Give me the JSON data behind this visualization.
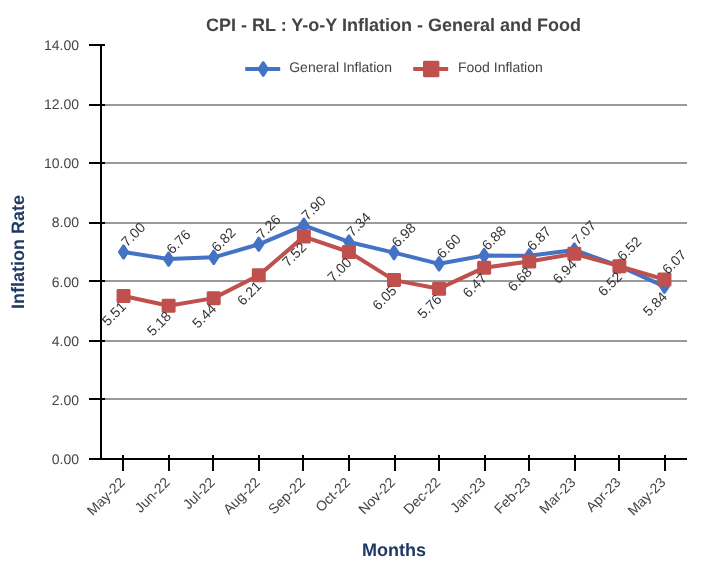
{
  "chart_data": {
    "type": "line",
    "title": "CPI - RL : Y-o-Y Inflation - General and Food",
    "xlabel": "Months",
    "ylabel": "Inflation Rate",
    "categories": [
      "May-22",
      "Jun-22",
      "Jul-22",
      "Aug-22",
      "Sep-22",
      "Oct-22",
      "Nov-22",
      "Dec-22",
      "Jan-23",
      "Feb-23",
      "Mar-23",
      "Apr-23",
      "May-23"
    ],
    "series": [
      {
        "name": "General Inflation",
        "color": "#4472c4",
        "marker": "diamond",
        "values": [
          7.0,
          6.76,
          6.82,
          7.26,
          7.9,
          7.34,
          6.98,
          6.6,
          6.88,
          6.87,
          7.07,
          6.52,
          5.84
        ],
        "value_labels": [
          "7.00",
          "6.76",
          "6.82",
          "7.26",
          "7.90",
          "7.34",
          "6.98",
          "6.60",
          "6.88",
          "6.87",
          "7.07",
          "6.52",
          "5.84"
        ]
      },
      {
        "name": "Food Inflation",
        "color": "#c0504d",
        "marker": "square",
        "values": [
          5.51,
          5.18,
          5.44,
          6.21,
          7.52,
          7.0,
          6.05,
          5.76,
          6.47,
          6.68,
          6.94,
          6.52,
          6.07
        ],
        "value_labels": [
          "5.51",
          "5.18",
          "5.44",
          "6.21",
          "7.52",
          "7.00",
          "6.05",
          "5.76",
          "6.47",
          "6.68",
          "6.94",
          "6.52",
          "6.07"
        ]
      }
    ],
    "ylim": [
      0,
      14
    ],
    "yticks": [
      {
        "value": 0,
        "label": "0.00"
      },
      {
        "value": 2,
        "label": "2.00"
      },
      {
        "value": 4,
        "label": "4.00"
      },
      {
        "value": 6,
        "label": "6.00"
      },
      {
        "value": 8,
        "label": "8.00"
      },
      {
        "value": 10,
        "label": "10.00"
      },
      {
        "value": 12,
        "label": "12.00"
      },
      {
        "value": 14,
        "label": "14.00"
      }
    ],
    "grid": "y",
    "legend": "top"
  }
}
